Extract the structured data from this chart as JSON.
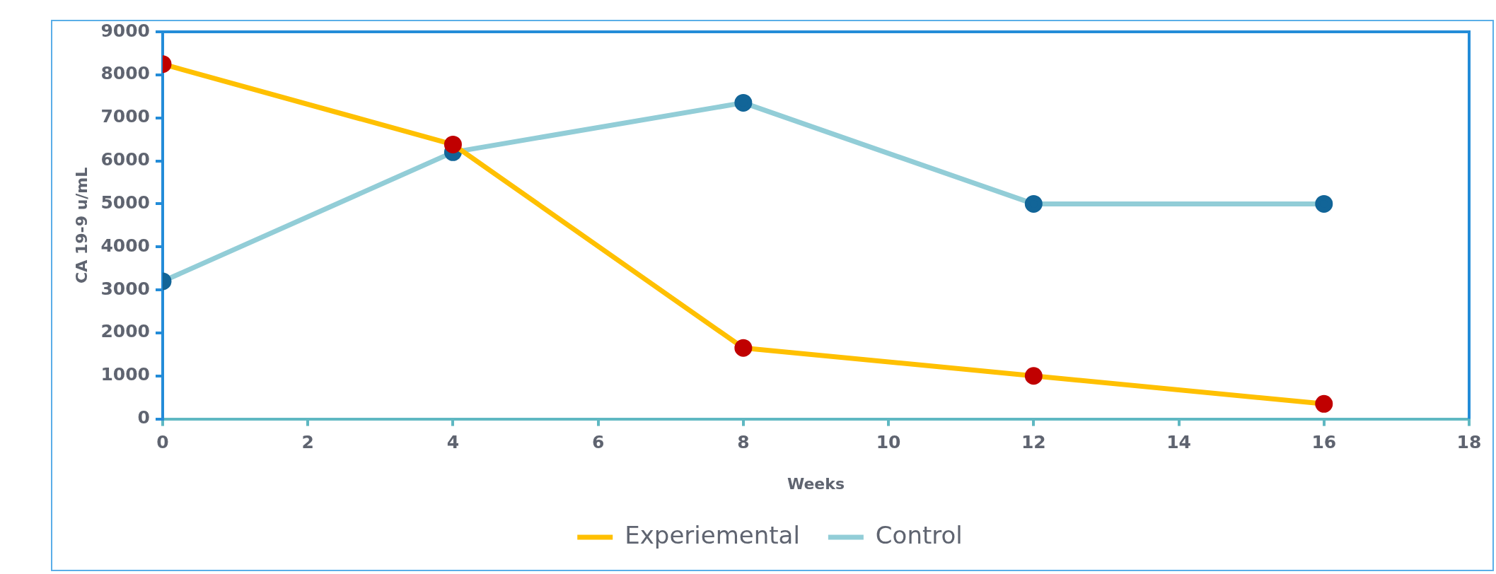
{
  "chart_data": {
    "type": "line",
    "xlabel": "Weeks",
    "ylabel": "CA 19-9 u/mL",
    "x": [
      0,
      4,
      8,
      12,
      16
    ],
    "series": [
      {
        "name": "Experiemental",
        "color": "#ffc000",
        "colors": [
          "#c00000",
          "#c00000",
          "#c00000",
          "#c00000",
          "#c00000"
        ],
        "values": [
          8250,
          6380,
          1650,
          1000,
          350
        ]
      },
      {
        "name": "Control",
        "color": "#92cdd7",
        "colors": [
          "#126598",
          "#126598",
          "#126598",
          "#126598",
          "#126598"
        ],
        "values": [
          3200,
          6200,
          7350,
          5000,
          5000
        ]
      }
    ],
    "xlim": [
      0,
      18
    ],
    "xticks": [
      0,
      2,
      4,
      6,
      8,
      10,
      12,
      14,
      16,
      18
    ],
    "ylim": [
      0,
      9000
    ],
    "yticks": [
      0,
      1000,
      2000,
      3000,
      4000,
      5000,
      6000,
      7000,
      8000,
      9000
    ],
    "grid": false,
    "legend": "bottom",
    "marker": "circle",
    "line_style": "solid"
  }
}
